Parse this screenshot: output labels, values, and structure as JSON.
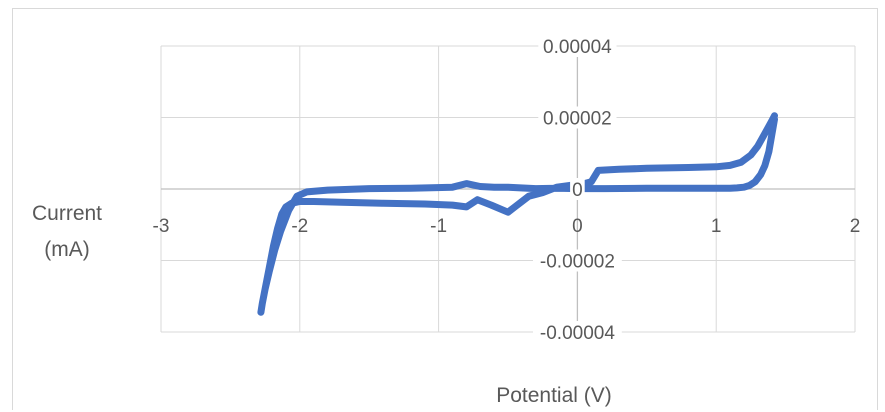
{
  "chart_data": {
    "type": "scatter",
    "title": "",
    "xlabel": "Potential (V)",
    "ylabel": [
      "Current",
      "(mA)"
    ],
    "xlim": [
      -3,
      2
    ],
    "ylim": [
      -4e-05,
      4e-05
    ],
    "x_ticks": [
      -3,
      -2,
      -1,
      0,
      1,
      2
    ],
    "x_tick_labels": [
      "-3",
      "-2",
      "-1",
      "0",
      "1",
      "2"
    ],
    "y_ticks": [
      4e-05,
      2e-05,
      0,
      -2e-05,
      -4e-05
    ],
    "y_tick_labels": [
      "0.00004",
      "0.00002",
      "0",
      "-0.00002",
      "-0.00004"
    ],
    "grid": true,
    "legend": "none",
    "series_color": "#4472c4",
    "series": [
      {
        "x": [
          1.42,
          1.4,
          1.38,
          1.35,
          1.32,
          1.28,
          1.24,
          1.2,
          1.15,
          1.1,
          1.0,
          0.8,
          0.5,
          0.2,
          0.0,
          -0.15,
          -0.3,
          -0.5,
          -0.6,
          -0.7,
          -0.8,
          -0.9,
          -1.2,
          -1.5,
          -1.8,
          -1.95,
          -2.02,
          -2.08,
          -2.14,
          -2.18,
          -2.22,
          -2.25,
          -2.27,
          -2.28,
          -2.27,
          -2.25,
          -2.22,
          -2.19,
          -2.16,
          -2.13,
          -2.1,
          -2.06,
          -2.0,
          -1.9,
          -1.7,
          -1.4,
          -1.1,
          -0.9,
          -0.8,
          -0.72,
          -0.62,
          -0.5,
          -0.45,
          -0.35,
          -0.25,
          -0.15,
          -0.05,
          0.05,
          0.1,
          0.15,
          0.3,
          0.5,
          0.8,
          1.0,
          1.1,
          1.18,
          1.25,
          1.3,
          1.35,
          1.4,
          1.42
        ],
        "y": [
          1.95e-05,
          1.5e-05,
          1.05e-05,
          6.5e-06,
          4e-06,
          2e-06,
          1e-06,
          5e-07,
          3e-07,
          2e-07,
          2e-07,
          2e-07,
          2e-07,
          1e-07,
          1e-07,
          2e-07,
          1e-07,
          5e-07,
          5e-07,
          7e-07,
          1.5e-06,
          5e-07,
          2e-07,
          1e-07,
          -3e-07,
          -8e-07,
          -2e-06,
          -6e-06,
          -1.2e-05,
          -1.7e-05,
          -2.3e-05,
          -2.8e-05,
          -3.2e-05,
          -3.45e-05,
          -3.2e-05,
          -2.8e-05,
          -2.2e-05,
          -1.6e-05,
          -1.1e-05,
          -7e-06,
          -5e-06,
          -4e-06,
          -3.5e-06,
          -3.5e-06,
          -3.7e-06,
          -4e-06,
          -4.2e-06,
          -4.5e-06,
          -5e-06,
          -3e-06,
          -4.5e-06,
          -6.5e-06,
          -5e-06,
          -2e-06,
          -1e-06,
          5e-07,
          1e-06,
          1.5e-06,
          2e-06,
          5.2e-06,
          5.5e-06,
          5.8e-06,
          6e-06,
          6.2e-06,
          6.6e-06,
          7.5e-06,
          9.5e-06,
          1.2e-05,
          1.55e-05,
          1.9e-05,
          2.05e-05
        ]
      }
    ]
  }
}
